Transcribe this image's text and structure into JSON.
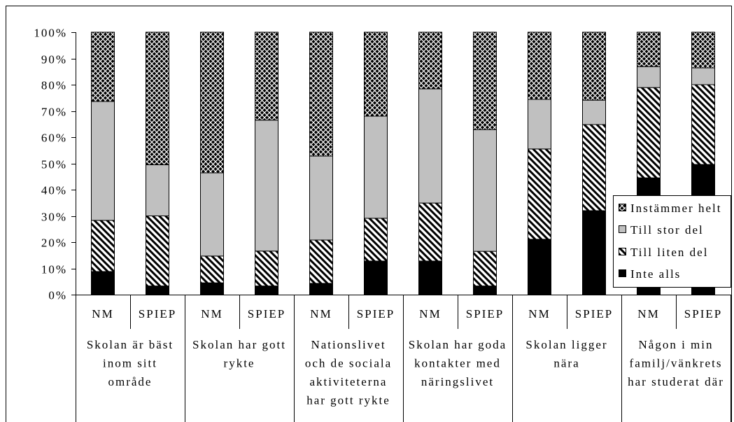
{
  "chart_data": {
    "type": "bar",
    "stacking": "percent",
    "orientation": "vertical",
    "ylim": [
      0,
      100
    ],
    "yticks": [
      0,
      10,
      20,
      30,
      40,
      50,
      60,
      70,
      80,
      90,
      100
    ],
    "ytick_labels": [
      "0%",
      "10%",
      "20%",
      "30%",
      "40%",
      "50%",
      "60%",
      "70%",
      "80%",
      "90%",
      "100%"
    ],
    "grid": false,
    "legend": {
      "position": "right"
    },
    "groups": [
      {
        "label_lines": [
          "Skolan är bäst",
          "inom sitt",
          "område"
        ],
        "categories": [
          "NM",
          "SPIEP"
        ]
      },
      {
        "label_lines": [
          "Skolan har gott",
          "rykte"
        ],
        "categories": [
          "NM",
          "SPIEP"
        ]
      },
      {
        "label_lines": [
          "Nationslivet",
          "och de sociala",
          "aktiviteterna",
          "har gott rykte"
        ],
        "categories": [
          "NM",
          "SPIEP"
        ]
      },
      {
        "label_lines": [
          "Skolan har goda",
          "kontakter med",
          "näringslivet"
        ],
        "categories": [
          "NM",
          "SPIEP"
        ]
      },
      {
        "label_lines": [
          "Skolan ligger",
          "nära"
        ],
        "categories": [
          "NM",
          "SPIEP"
        ]
      },
      {
        "label_lines": [
          "Någon i min",
          "familj/vänkrets",
          "har studerat där"
        ],
        "categories": [
          "NM",
          "SPIEP"
        ]
      }
    ],
    "series": [
      {
        "name": "Inte alls",
        "color": "#000000",
        "values": [
          8.8,
          3.3,
          4.5,
          3.3,
          4.3,
          12.8,
          12.8,
          3.3,
          21.1,
          32.0,
          44.5,
          49.6
        ]
      },
      {
        "name": "Till liten del",
        "pattern": "wide-downward-diagonal",
        "values": [
          19.5,
          26.7,
          10.2,
          13.3,
          16.5,
          16.3,
          22.1,
          13.2,
          34.4,
          32.8,
          34.4,
          30.4
        ]
      },
      {
        "name": "Till stor del",
        "color": "#c0c0c0",
        "values": [
          45.3,
          19.5,
          31.7,
          49.9,
          32.0,
          38.9,
          43.5,
          46.4,
          18.9,
          9.3,
          8.0,
          6.4
        ]
      },
      {
        "name": "Instämmer helt",
        "pattern": "diagonal-crosshatch",
        "values": [
          26.4,
          50.5,
          53.6,
          33.5,
          47.2,
          32.0,
          21.6,
          37.1,
          25.6,
          25.9,
          13.1,
          13.6
        ]
      }
    ]
  }
}
